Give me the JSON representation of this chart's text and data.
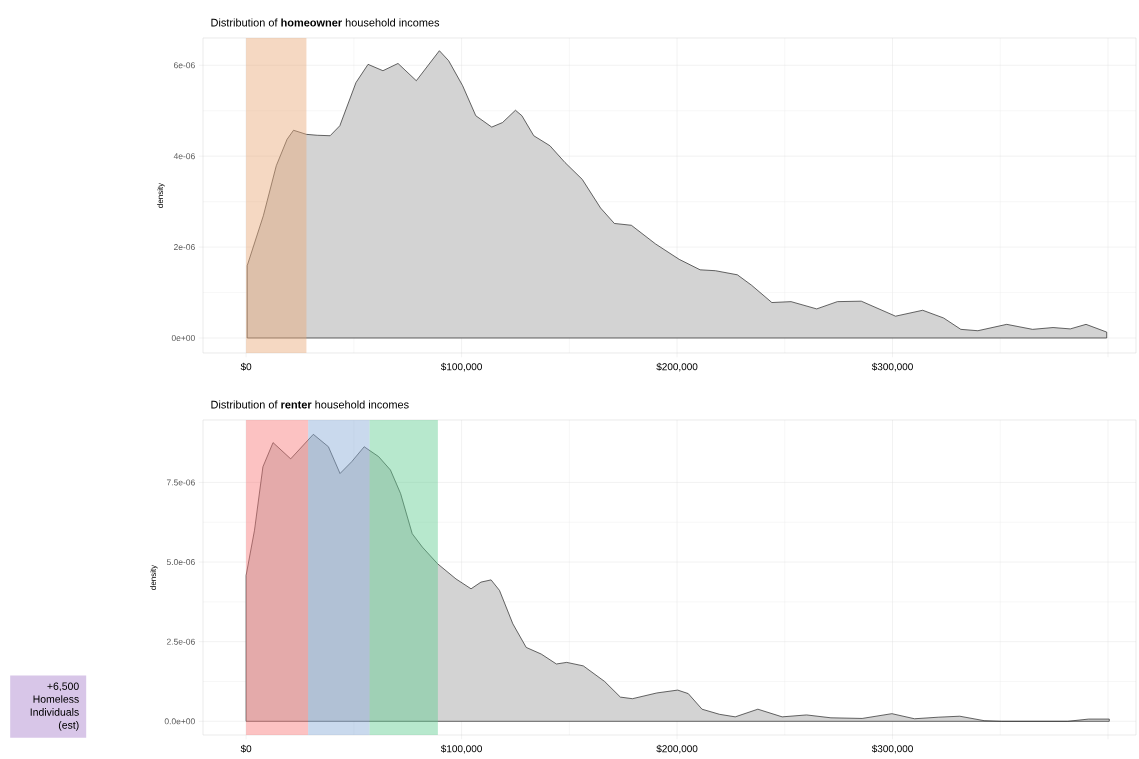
{
  "chart_data": [
    {
      "type": "area",
      "title": "Distribution of **homeowner** household incomes",
      "ylabel": "density",
      "xlim": [
        -20000,
        413000
      ],
      "ylim": [
        -3.3e-07,
        6.6e-06
      ],
      "xticks": [
        {
          "value": 0,
          "label": "$0"
        },
        {
          "value": 100000,
          "label": "$100,000"
        },
        {
          "value": 200000,
          "label": "$200,000"
        },
        {
          "value": 300000,
          "label": "$300,000"
        },
        {
          "value": 400000,
          "label": null
        }
      ],
      "yticks": [
        {
          "value": 0,
          "label": "0e+00"
        },
        {
          "value": 2e-06,
          "label": "2e-06"
        },
        {
          "value": 4e-06,
          "label": "4e-06"
        },
        {
          "value": 6e-06,
          "label": "6e-06"
        }
      ],
      "grid": true,
      "series": [
        {
          "color": "#d3d3d3",
          "x": [
            500,
            8000,
            14000,
            19000,
            22000,
            28000,
            33000,
            39000,
            43500,
            51000,
            56600,
            63500,
            70500,
            79000,
            89700,
            94000,
            100500,
            106600,
            114000,
            119000,
            125000,
            128000,
            133500,
            141000,
            148000,
            156000,
            164500,
            170900,
            178800,
            190000,
            201000,
            210700,
            217800,
            228000,
            234600,
            244000,
            252900,
            264800,
            274400,
            285500,
            301400,
            314000,
            323700,
            331700,
            339600,
            353000,
            365000,
            374500,
            382500,
            389800,
            399400
          ],
          "values": [
            1.59e-06,
            2.69e-06,
            3.79e-06,
            4.37e-06,
            4.57e-06,
            4.48e-06,
            4.46e-06,
            4.45e-06,
            4.67e-06,
            5.62e-06,
            6.02e-06,
            5.88e-06,
            6.04e-06,
            5.66e-06,
            6.32e-06,
            6.1e-06,
            5.55e-06,
            4.89e-06,
            4.64e-06,
            4.74e-06,
            5.01e-06,
            4.89e-06,
            4.45e-06,
            4.23e-06,
            3.86e-06,
            3.49e-06,
            2.86e-06,
            2.52e-06,
            2.48e-06,
            2.07e-06,
            1.73e-06,
            1.5e-06,
            1.48e-06,
            1.39e-06,
            1.16e-06,
            7.8e-07,
            8e-07,
            6.4e-07,
            8e-07,
            8.1e-07,
            4.8e-07,
            6.1e-07,
            4.4e-07,
            1.9e-07,
            1.6e-07,
            3e-07,
            1.9e-07,
            2.3e-07,
            2e-07,
            3e-07,
            1.3e-07
          ]
        }
      ],
      "bands": [
        {
          "axis": "x",
          "from": 0,
          "to": 28000,
          "color": "#e8a878"
        }
      ]
    },
    {
      "type": "area",
      "title": "Distribution of **renter** household incomes",
      "ylabel": "density",
      "xlim": [
        -20000,
        413000
      ],
      "ylim": [
        -4.3e-07,
        9.46e-06
      ],
      "xticks": [
        {
          "value": 0,
          "label": "$0"
        },
        {
          "value": 100000,
          "label": "$100,000"
        },
        {
          "value": 200000,
          "label": "$200,000"
        },
        {
          "value": 300000,
          "label": "$300,000"
        },
        {
          "value": 400000,
          "label": null
        }
      ],
      "yticks": [
        {
          "value": 0,
          "label": "0.0e+00"
        },
        {
          "value": 2.5e-06,
          "label": "2.5e-06"
        },
        {
          "value": 5e-06,
          "label": "5.0e-06"
        },
        {
          "value": 7.5e-06,
          "label": "7.5e-06"
        }
      ],
      "grid": true,
      "series": [
        {
          "color": "#d3d3d3",
          "x": [
            0,
            3900,
            7800,
            12500,
            20700,
            31200,
            38200,
            43600,
            49000,
            54800,
            61500,
            67000,
            71700,
            77100,
            81800,
            88800,
            97400,
            104400,
            109000,
            113700,
            117600,
            123800,
            130000,
            137000,
            144000,
            148800,
            156500,
            166400,
            173700,
            179300,
            190600,
            200300,
            205200,
            211600,
            219700,
            227000,
            237500,
            248800,
            260100,
            271400,
            285900,
            299700,
            310200,
            321500,
            331200,
            342500,
            350600,
            381300,
            391000,
            400600
          ],
          "values": [
            4.58e-06,
            6e-06,
            7.99e-06,
            8.75e-06,
            8.24e-06,
            9.01e-06,
            8.62e-06,
            7.78e-06,
            8.15e-06,
            8.62e-06,
            8.31e-06,
            7.89e-06,
            7.15e-06,
            5.89e-06,
            5.47e-06,
            4.95e-06,
            4.47e-06,
            4.16e-06,
            4.37e-06,
            4.44e-06,
            4.11e-06,
            3.06e-06,
            2.32e-06,
            2.11e-06,
            1.8e-06,
            1.85e-06,
            1.74e-06,
            1.25e-06,
            7.6e-07,
            7.1e-07,
            8.9e-07,
            9.8e-07,
            8.7e-07,
            3.8e-07,
            2.2e-07,
            1.4e-07,
            3.8e-07,
            1.4e-07,
            2e-07,
            1.1e-07,
            9e-08,
            2.4e-07,
            8e-08,
            1.3e-07,
            1.6e-07,
            2e-08,
            0,
            0,
            7e-08,
            7e-08
          ]
        }
      ],
      "bands": [
        {
          "axis": "x",
          "from": 0,
          "to": 28800,
          "color": "#f87878"
        },
        {
          "axis": "x",
          "from": 28800,
          "to": 57300,
          "color": "#88aad8"
        },
        {
          "axis": "x",
          "from": 57300,
          "to": 89000,
          "color": "#60cc90"
        }
      ],
      "annotations": [
        "+6,500 Homeless Individuals (est)"
      ]
    }
  ]
}
